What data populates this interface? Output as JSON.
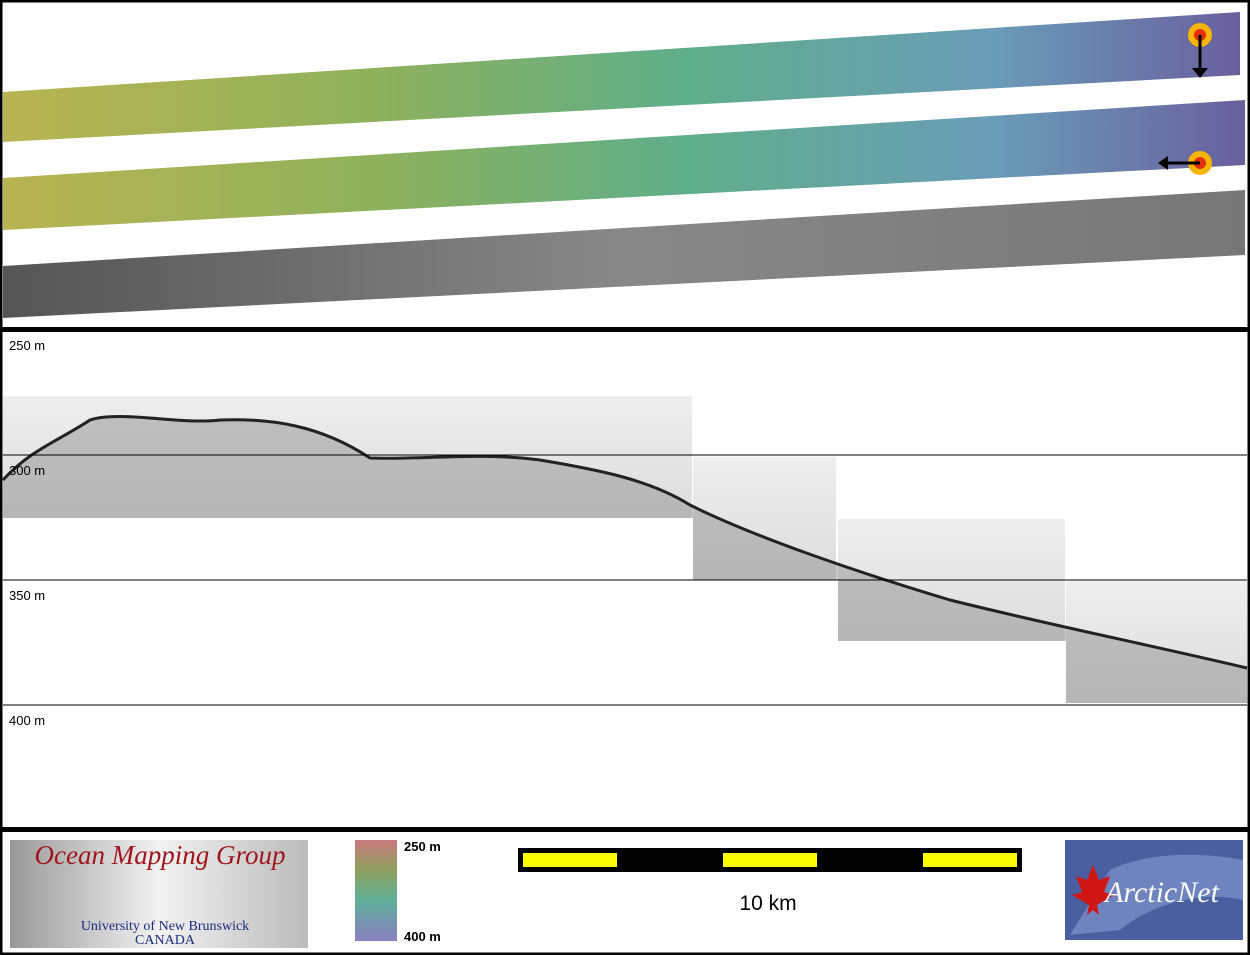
{
  "echogram": {
    "depth_labels": [
      "250 m",
      "300 m",
      "350 m",
      "400 m"
    ]
  },
  "footer": {
    "logo_title": "Ocean Mapping Group",
    "logo_university": "University of New Brunswick",
    "logo_country": "CANADA",
    "colorbar_top": "250 m",
    "colorbar_bottom": "400 m",
    "scale_label": "10 km",
    "partner_logo": "ArcticNet"
  }
}
